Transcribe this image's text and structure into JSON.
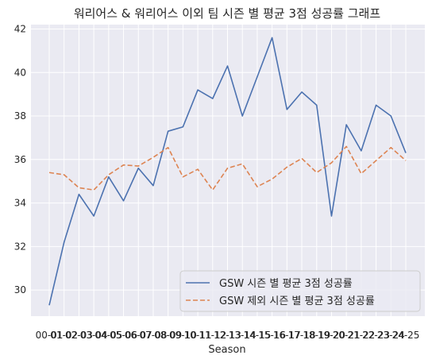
{
  "chart_data": {
    "type": "line",
    "title": "워리어스 & 워리어스 이외 팀 시즌 별 평균 3점 성공률 그래프",
    "xlabel": "Season",
    "ylabel": "",
    "categories": [
      "00-01",
      "01-02",
      "02-03",
      "03-04",
      "04-05",
      "05-06",
      "06-07",
      "07-08",
      "08-09",
      "09-10",
      "10-11",
      "11-12",
      "12-13",
      "13-14",
      "14-15",
      "15-16",
      "16-17",
      "17-18",
      "18-19",
      "19-20",
      "20-21",
      "21-22",
      "22-23",
      "23-24",
      "24-25"
    ],
    "ylim": [
      28.8,
      42.2
    ],
    "yticks": [
      30,
      32,
      34,
      36,
      38,
      40,
      42
    ],
    "grid": true,
    "legend_position": "lower-right",
    "series": [
      {
        "name": "GSW 시즌 별 평균 3점 성공률",
        "color": "#4c72b0",
        "dash": "solid",
        "values": [
          29.3,
          32.2,
          34.4,
          33.4,
          35.2,
          34.1,
          35.6,
          34.8,
          37.3,
          37.5,
          39.2,
          38.8,
          40.3,
          38.0,
          39.8,
          41.6,
          38.3,
          39.1,
          38.5,
          33.4,
          37.6,
          36.4,
          38.5,
          38.0,
          36.3
        ]
      },
      {
        "name": "GSW 제외 시즌 별 평균 3점 성공률",
        "color": "#dd8452",
        "dash": "dashed",
        "values": [
          35.4,
          35.3,
          34.7,
          34.6,
          35.3,
          35.75,
          35.7,
          36.1,
          36.55,
          35.2,
          35.55,
          34.6,
          35.6,
          35.8,
          34.75,
          35.1,
          35.65,
          36.05,
          35.4,
          35.85,
          36.6,
          35.35,
          35.95,
          36.55,
          35.95
        ]
      }
    ]
  }
}
